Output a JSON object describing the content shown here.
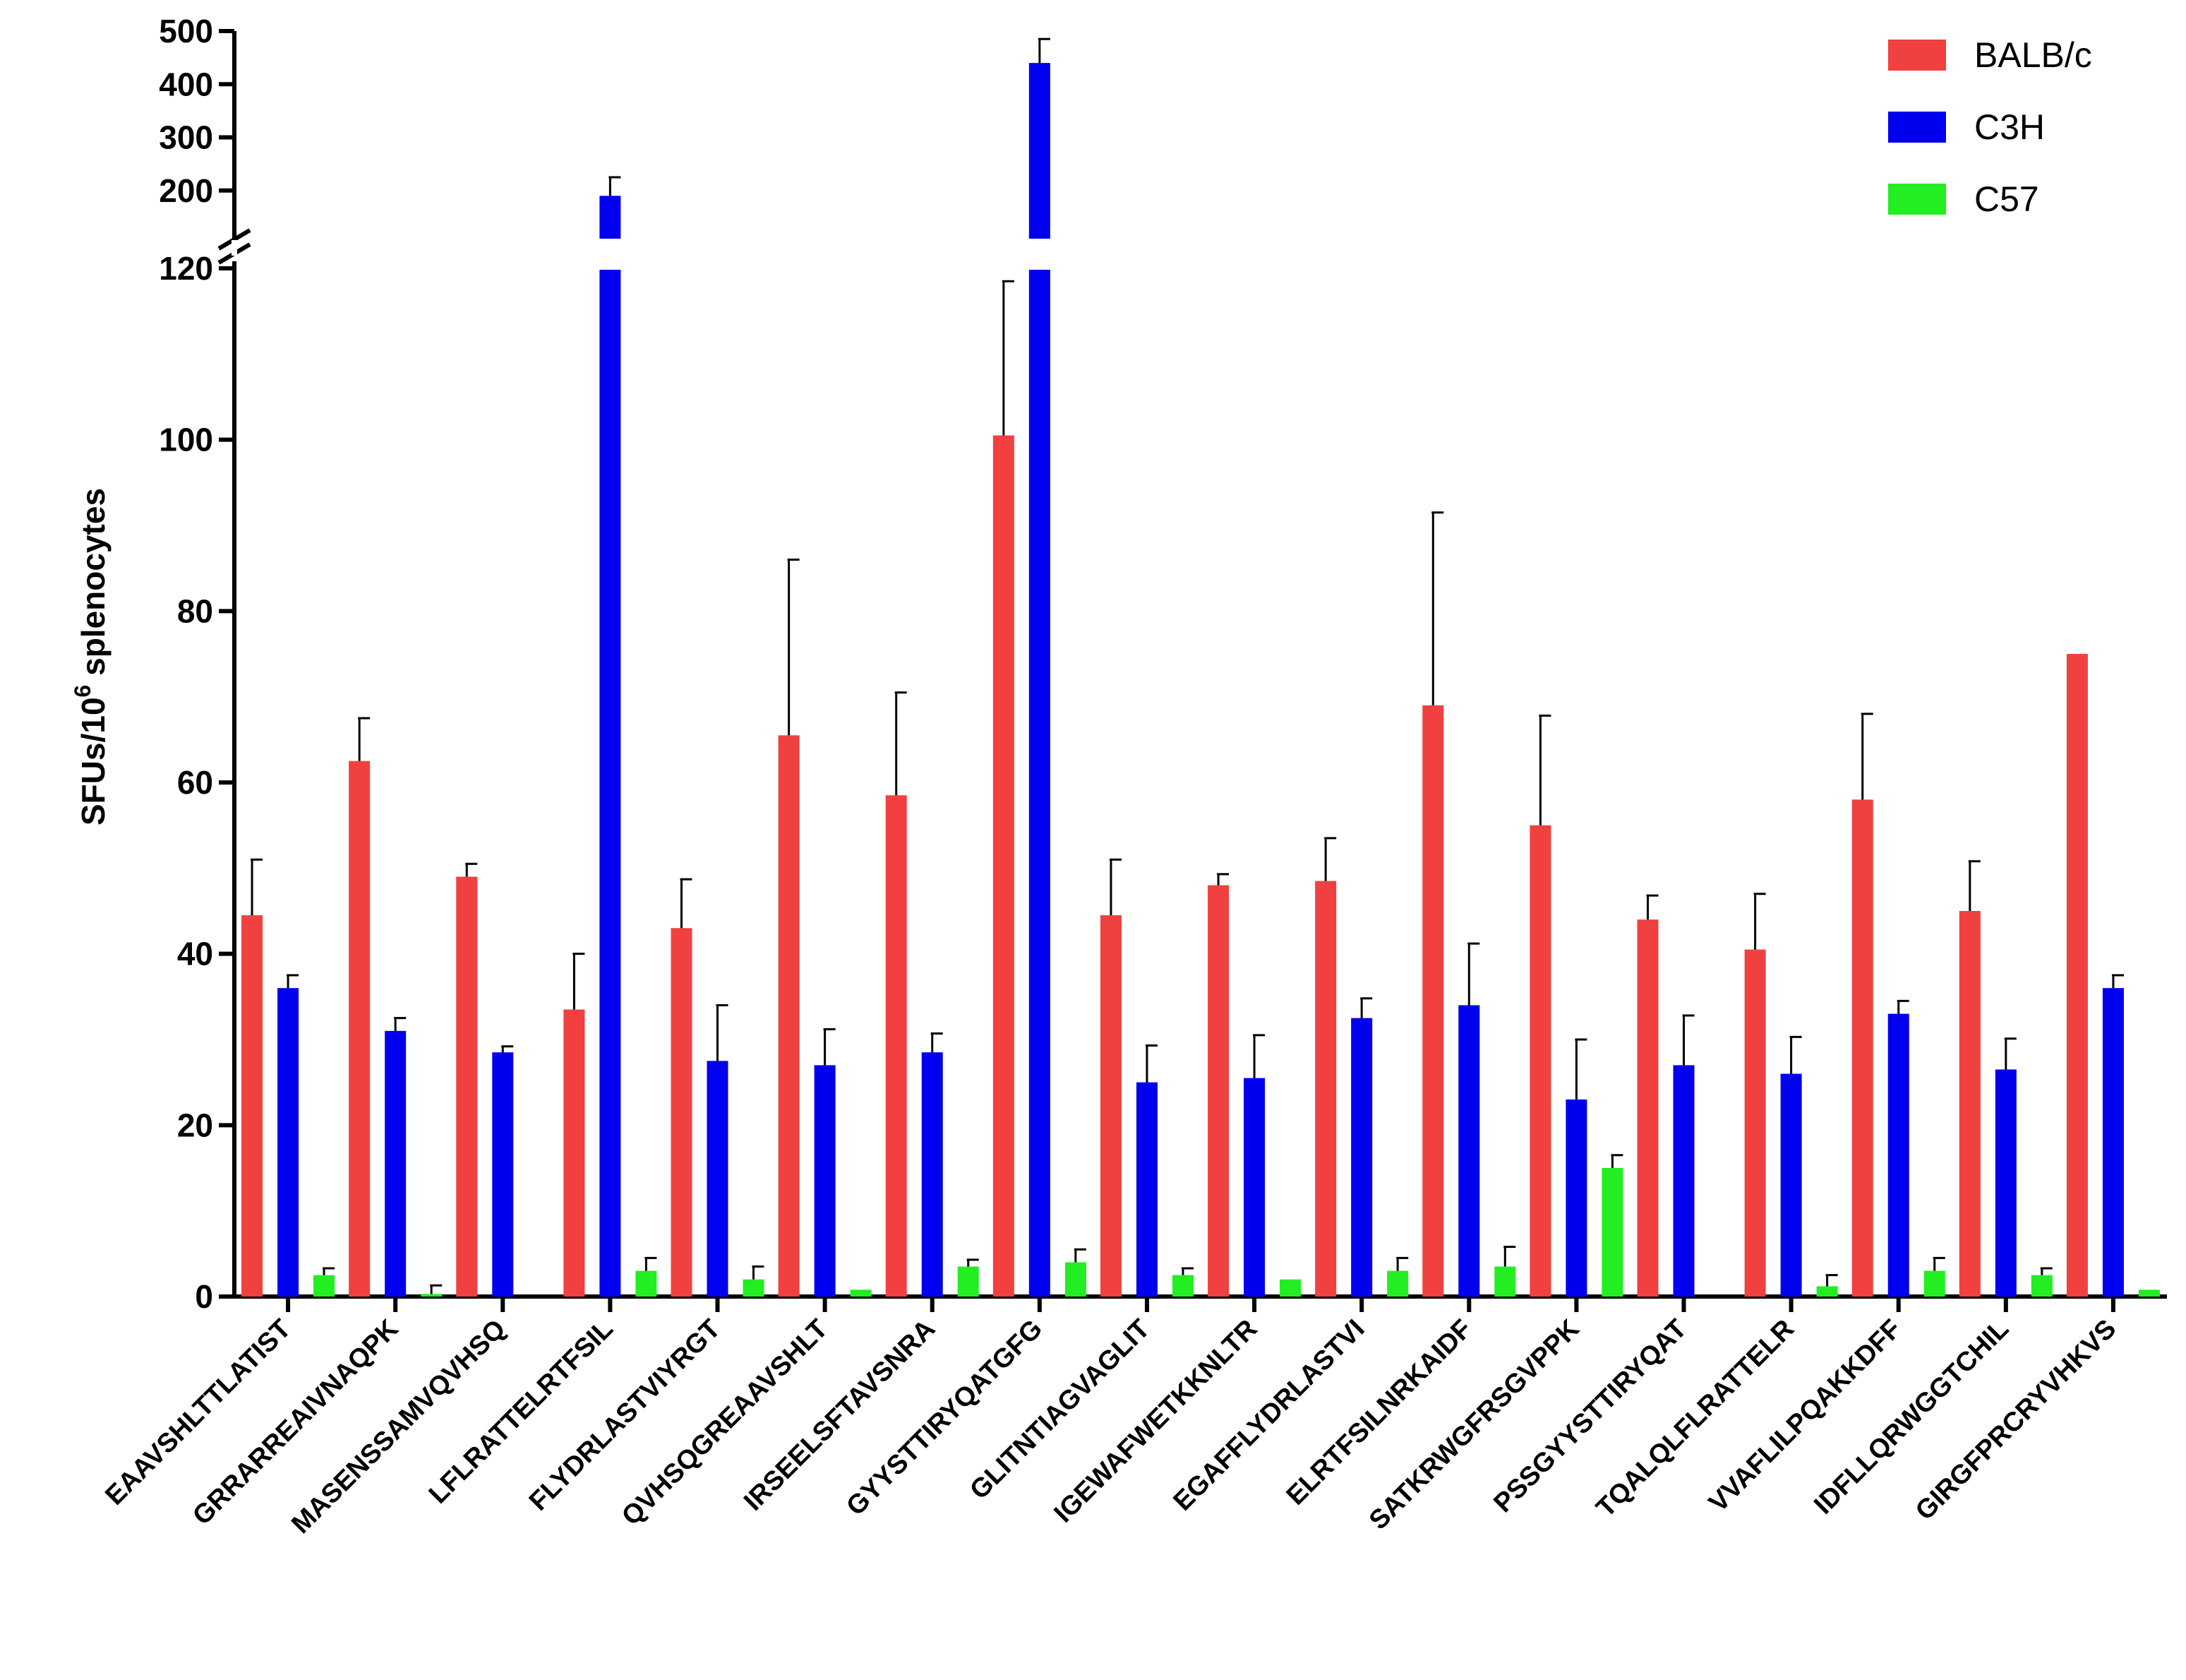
{
  "chart_data": {
    "type": "bar",
    "title": "",
    "xlabel": "",
    "ylabel": {
      "main": "SFUs/10",
      "superscript": "6",
      "suffix": " splenocytes"
    },
    "y_axis_segments": [
      {
        "range": [
          0,
          120
        ],
        "ticks": [
          0,
          20,
          40,
          60,
          80,
          100,
          120
        ]
      },
      {
        "range": [
          120,
          500
        ],
        "ticks": [
          200,
          300,
          400,
          500
        ]
      }
    ],
    "ylim": [
      0,
      500
    ],
    "axis_break_at": 120,
    "legend_position": "top-right",
    "categories": [
      "EAAVSHLTTLATIST",
      "GRRARREAIVNAQPK",
      "MASENSSAMVQVHSQ",
      "LFLRATTELRTFSIL",
      "FLYDRLASTVIYRGT",
      "QVHSQGREAAVSHLT",
      "IRSEELSFTAVSNRA",
      "GYYSTTIRYQATGFG",
      "GLITNTIAGVAGLIT",
      "IGEWAFWETKKNLTR",
      "EGAFFLYDRLASTVI",
      "ELRTFSILNRKAIDF",
      "SATKRWGFRSGVPPK",
      "PSSGYYSTTIRYQAT",
      "TQALQLFLRATTELR",
      "VVAFLILPQAKKDFF",
      "IDFLLQRWGGTCHIL",
      "GIRGFPRCRYVHKVS"
    ],
    "series": [
      {
        "name": "BALB/c",
        "color": "#f04040",
        "values": [
          44.5,
          62.5,
          49,
          33.5,
          43,
          65.5,
          58.5,
          100.5,
          44.5,
          48,
          48.5,
          69,
          55,
          44,
          40.5,
          58,
          45,
          75
        ],
        "errors": [
          6.5,
          5,
          1.5,
          6.5,
          5.7,
          20.5,
          12,
          18,
          6.5,
          1.3,
          5,
          22.5,
          12.8,
          2.8,
          6.5,
          10,
          5.8,
          0
        ]
      },
      {
        "name": "C3H",
        "color": "#0000ee",
        "values": [
          36,
          31,
          28.5,
          190,
          27.5,
          27,
          28.5,
          440,
          25,
          25.5,
          32.5,
          34,
          23,
          27,
          26,
          33,
          26.5,
          36
        ],
        "errors": [
          1.5,
          1.5,
          0.7,
          35,
          6.5,
          4.2,
          2.2,
          45,
          4.3,
          5,
          2.3,
          7.2,
          7,
          5.8,
          4.3,
          1.5,
          3.6,
          1.5
        ]
      },
      {
        "name": "C57",
        "color": "#22ee22",
        "values": [
          2.5,
          0.3,
          0,
          3,
          2,
          0.8,
          3.5,
          4,
          2.5,
          2,
          3,
          3.5,
          15,
          0,
          1.2,
          3,
          2.5,
          0.8
        ],
        "errors": [
          0.8,
          1,
          0,
          1.5,
          1.5,
          0,
          0.8,
          1.5,
          0.8,
          0,
          1.5,
          2.3,
          1.5,
          0,
          1.3,
          1.5,
          0.8,
          0
        ]
      }
    ]
  }
}
